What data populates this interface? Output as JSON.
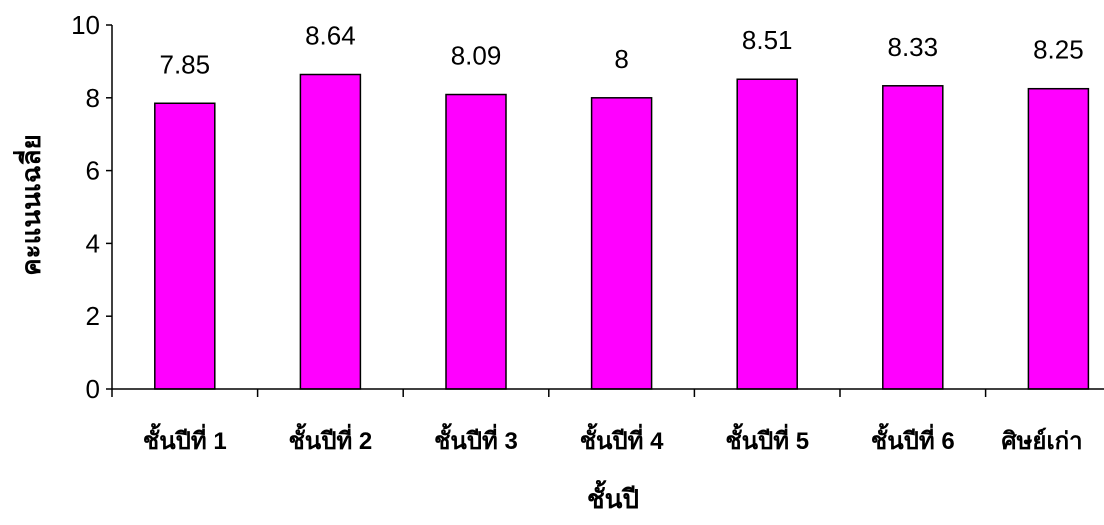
{
  "chart_data": {
    "type": "bar",
    "categories": [
      "ชั้นปีที่ 1",
      "ชั้นปีที่ 2",
      "ชั้นปีที่ 3",
      "ชั้นปีที่ 4",
      "ชั้นปีที่ 5",
      "ชั้นปีที่ 6",
      "ศิษย์เก่า"
    ],
    "values": [
      7.85,
      8.64,
      8.09,
      8,
      8.51,
      8.33,
      8.25
    ],
    "data_labels": [
      "7.85",
      "8.64",
      "8.09",
      "8",
      "8.51",
      "8.33",
      "8.25"
    ],
    "y_ticks": [
      "0",
      "2",
      "4",
      "6",
      "8",
      "10"
    ],
    "xlabel": "ชั้นปี",
    "ylabel": "คะแนนเฉลี่ย",
    "ylim": [
      0,
      10
    ],
    "grid": false,
    "legend": "none",
    "bar_color": "#FF00FF"
  }
}
